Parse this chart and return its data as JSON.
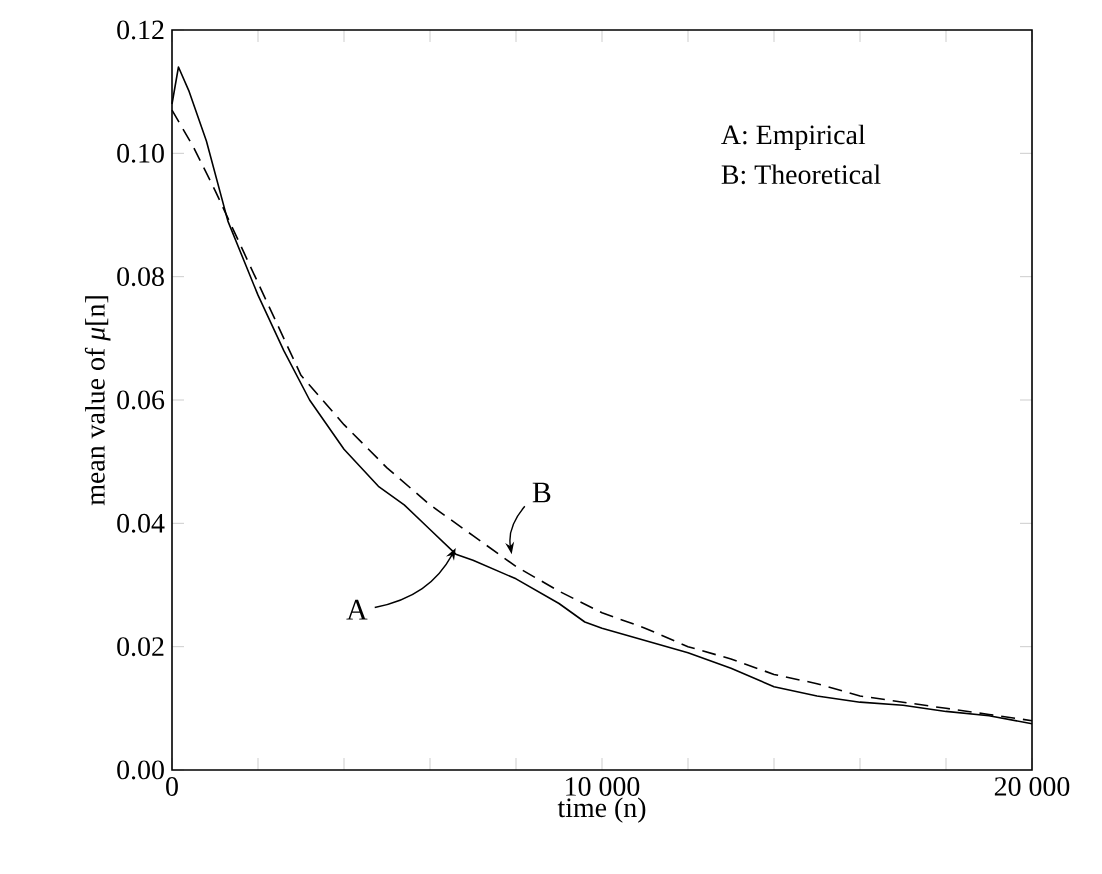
{
  "chart_data": {
    "type": "line",
    "xlabel": "time (n)",
    "ylabel": "mean value of *μ*[n]",
    "xlim": [
      0,
      20000
    ],
    "ylim": [
      0,
      0.12
    ],
    "xticks": [
      {
        "value": 0,
        "label": "0"
      },
      {
        "value": 2000,
        "label": null
      },
      {
        "value": 4000,
        "label": null
      },
      {
        "value": 6000,
        "label": null
      },
      {
        "value": 8000,
        "label": null
      },
      {
        "value": 10000,
        "label": "10 000"
      },
      {
        "value": 12000,
        "label": null
      },
      {
        "value": 14000,
        "label": null
      },
      {
        "value": 16000,
        "label": null
      },
      {
        "value": 18000,
        "label": null
      },
      {
        "value": 20000,
        "label": "20 000"
      }
    ],
    "yticks": [
      {
        "value": 0,
        "label": "0.00"
      },
      {
        "value": 0.02,
        "label": "0.02"
      },
      {
        "value": 0.04,
        "label": "0.04"
      },
      {
        "value": 0.06,
        "label": "0.06"
      },
      {
        "value": 0.08,
        "label": "0.08"
      },
      {
        "value": 0.1,
        "label": "0.10"
      },
      {
        "value": 0.12,
        "label": "0.12"
      }
    ],
    "grid": false,
    "marker": "none",
    "series": [
      {
        "color": "#000000",
        "line_style": "solid",
        "x": [
          0,
          150,
          400,
          800,
          1300,
          2000,
          2600,
          3200,
          4000,
          4800,
          5400,
          6000,
          6600,
          7000,
          8000,
          9000,
          9600,
          10000,
          11000,
          12000,
          13000,
          14000,
          15000,
          16000,
          17000,
          18000,
          19000,
          20000
        ],
        "values": [
          0.108,
          0.114,
          0.11,
          0.102,
          0.089,
          0.077,
          0.068,
          0.06,
          0.052,
          0.046,
          0.043,
          0.039,
          0.035,
          0.034,
          0.031,
          0.027,
          0.024,
          0.023,
          0.021,
          0.019,
          0.0165,
          0.0135,
          0.012,
          0.011,
          0.0105,
          0.0095,
          0.0088,
          0.0075
        ]
      },
      {
        "color": "#000000",
        "line_style": "dashed",
        "x": [
          0,
          500,
          1000,
          2000,
          3000,
          4000,
          5000,
          6000,
          7000,
          8000,
          9000,
          10000,
          11000,
          12000,
          13000,
          14000,
          15000,
          16000,
          17000,
          18000,
          19000,
          20000
        ],
        "values": [
          0.107,
          0.101,
          0.094,
          0.079,
          0.064,
          0.056,
          0.049,
          0.043,
          0.038,
          0.033,
          0.029,
          0.0255,
          0.023,
          0.02,
          0.018,
          0.0155,
          0.014,
          0.012,
          0.011,
          0.01,
          0.009,
          0.008
        ]
      }
    ],
    "annotations": [
      "A: Empirical",
      "B: Theoretical",
      {
        "text": "A",
        "x": 6600,
        "y": 0.036
      },
      {
        "text": "B",
        "x": 7900,
        "y": 0.035
      }
    ]
  }
}
